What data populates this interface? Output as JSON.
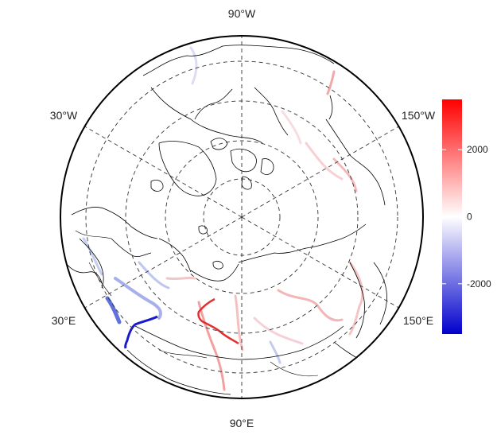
{
  "map": {
    "projection": "north-polar-stereographic",
    "graticule_style": "dashed",
    "longitude_labels": {
      "top": "90°W",
      "bottom": "90°E",
      "upper_left": "30°W",
      "lower_left": "30°E",
      "upper_right": "150°W",
      "lower_right": "150°E"
    }
  },
  "colorbar": {
    "ticks": [
      "2000",
      "0",
      "-2000"
    ],
    "tick_values": [
      2000,
      0,
      -2000
    ],
    "range": [
      -3500,
      3500
    ],
    "colors": {
      "high": "#ff0000",
      "mid": "#ffffff",
      "low": "#0000cc"
    }
  }
}
